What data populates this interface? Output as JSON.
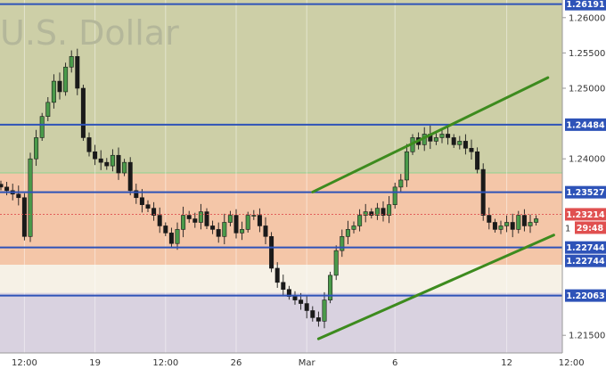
{
  "chart_data": {
    "type": "candlestick",
    "watermark": "U.S. Dollar",
    "y_range": [
      1.2125,
      1.2625
    ],
    "y_ticks": [
      "1.26000",
      "1.25500",
      "1.25000",
      "1.24000",
      "1.21500"
    ],
    "x_ticks": [
      {
        "label": "12:00",
        "bar": 4
      },
      {
        "label": "19",
        "bar": 16
      },
      {
        "label": "12:00",
        "bar": 28
      },
      {
        "label": "26",
        "bar": 40
      },
      {
        "label": "Mar",
        "bar": 52
      },
      {
        "label": "6",
        "bar": 67
      },
      {
        "label": "12",
        "bar": 86
      },
      {
        "label": "12:00",
        "bar": 97
      }
    ],
    "zones": [
      {
        "from": 1.238,
        "to": 1.2625,
        "color": "#cdcfa7"
      },
      {
        "from": 1.225,
        "to": 1.238,
        "color": "#f4c6a8"
      },
      {
        "from": 1.2125,
        "to": 1.221,
        "color": "#d9d2e0"
      }
    ],
    "levels": [
      {
        "value": 1.26191,
        "label": "1.26191"
      },
      {
        "value": 1.24484,
        "label": "1.24484"
      },
      {
        "value": 1.23527,
        "label": "1.23527"
      },
      {
        "value": 1.22744,
        "label": "1.22744"
      },
      {
        "value": 1.22744,
        "label": "1.22744",
        "badge_offset": 15
      },
      {
        "value": 1.22063,
        "label": "1.22063"
      }
    ],
    "current_price": {
      "value": 1.23214,
      "label": "1.23214",
      "timer": "29:48",
      "timer_prefix": "1"
    },
    "trend_lines": [
      {
        "from": [
          53,
          1.2353
        ],
        "to": [
          93,
          1.2515
        ]
      },
      {
        "from": [
          54,
          1.2145
        ],
        "to": [
          94,
          1.2292
        ]
      }
    ],
    "closes": [
      1.236,
      1.2355,
      1.235,
      1.2345,
      1.229,
      1.24,
      1.243,
      1.246,
      1.248,
      1.251,
      1.2495,
      1.253,
      1.2545,
      1.25,
      1.243,
      1.241,
      1.24,
      1.2395,
      1.239,
      1.2405,
      1.238,
      1.2395,
      1.2355,
      1.2345,
      1.2335,
      1.233,
      1.232,
      1.2305,
      1.2295,
      1.228,
      1.23,
      1.232,
      1.2315,
      1.231,
      1.2325,
      1.2305,
      1.23,
      1.229,
      1.231,
      1.232,
      1.2295,
      1.23,
      1.232,
      1.232,
      1.2305,
      1.229,
      1.2245,
      1.2225,
      1.2215,
      1.2205,
      1.22,
      1.2195,
      1.2185,
      1.2175,
      1.217,
      1.22,
      1.2235,
      1.227,
      1.229,
      1.23,
      1.2305,
      1.232,
      1.2325,
      1.232,
      1.233,
      1.232,
      1.2335,
      1.236,
      1.237,
      1.241,
      1.243,
      1.242,
      1.2435,
      1.2425,
      1.243,
      1.2435,
      1.243,
      1.242,
      1.2425,
      1.2415,
      1.241,
      1.2385,
      1.232,
      1.231,
      1.23,
      1.2305,
      1.231,
      1.23,
      1.232,
      1.2305,
      1.231,
      1.2315
    ]
  }
}
